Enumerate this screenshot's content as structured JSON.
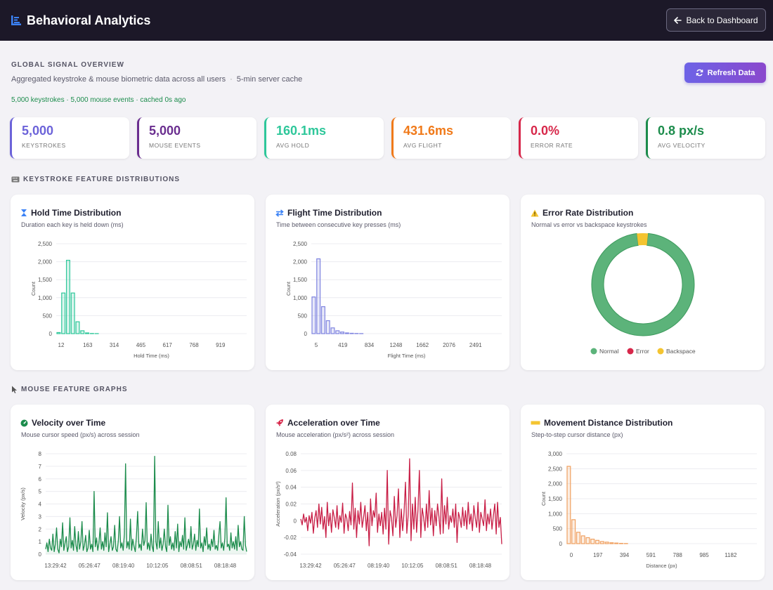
{
  "header": {
    "title": "Behavioral Analytics",
    "back_label": "Back to Dashboard"
  },
  "overview": {
    "label": "GLOBAL SIGNAL OVERVIEW",
    "description": "Aggregated keystroke & mouse biometric data across all users",
    "cache": "5-min server cache",
    "status": "5,000 keystrokes · 5,000 mouse events · cached 0s ago",
    "refresh_label": "Refresh Data"
  },
  "stats": [
    {
      "value": "5,000",
      "label": "Keystrokes",
      "color": "#6c63d9"
    },
    {
      "value": "5,000",
      "label": "Mouse events",
      "color": "#6a2e8f"
    },
    {
      "value": "160.1ms",
      "label": "Avg hold",
      "color": "#2ec79a"
    },
    {
      "value": "431.6ms",
      "label": "Avg flight",
      "color": "#f07a1a"
    },
    {
      "value": "0.0%",
      "label": "Error rate",
      "color": "#d7274a"
    },
    {
      "value": "0.8 px/s",
      "label": "Avg velocity",
      "color": "#1c8c4c"
    }
  ],
  "sections": {
    "keystroke": "KEYSTROKE FEATURE DISTRIBUTIONS",
    "mouse": "MOUSE FEATURE GRAPHS"
  },
  "cards": {
    "hold": {
      "title": "Hold Time Distribution",
      "subtitle": "Duration each key is held down (ms)"
    },
    "flight": {
      "title": "Flight Time Distribution",
      "subtitle": "Time between consecutive key presses (ms)"
    },
    "error": {
      "title": "Error Rate Distribution",
      "subtitle": "Normal vs error vs backspace keystrokes"
    },
    "velocity": {
      "title": "Velocity over Time",
      "subtitle": "Mouse cursor speed (px/s) across session"
    },
    "accel": {
      "title": "Acceleration over Time",
      "subtitle": "Mouse acceleration (px/s²) across session"
    },
    "distance": {
      "title": "Movement Distance Distribution",
      "subtitle": "Step-to-step cursor distance (px)"
    }
  },
  "chart_data": [
    {
      "id": "hold",
      "type": "bar",
      "color": "#2ec79a",
      "xlabel": "Hold Time (ms)",
      "ylabel": "Count",
      "ylim": [
        0,
        2500
      ],
      "yticks": [
        "0",
        "500",
        "1,000",
        "1,500",
        "2,000",
        "2,500"
      ],
      "xticks": [
        "12",
        "163",
        "314",
        "465",
        "617",
        "768",
        "919"
      ],
      "values": [
        30,
        1130,
        2040,
        1130,
        330,
        80,
        20,
        5,
        2,
        0,
        0,
        0,
        0,
        0,
        0,
        0,
        0,
        0,
        0,
        0,
        0,
        0,
        0,
        0,
        0,
        0,
        0,
        0,
        0,
        0,
        0,
        0,
        0,
        0,
        0,
        0,
        0,
        0,
        0,
        0
      ]
    },
    {
      "id": "flight",
      "type": "bar",
      "color": "#7f84e0",
      "xlabel": "Flight Time (ms)",
      "ylabel": "Count",
      "ylim": [
        0,
        2500
      ],
      "yticks": [
        "0",
        "500",
        "1,000",
        "1,500",
        "2,000",
        "2,500"
      ],
      "xticks": [
        "5",
        "419",
        "834",
        "1248",
        "1662",
        "2076",
        "2491"
      ],
      "values": [
        1020,
        2080,
        750,
        360,
        160,
        80,
        45,
        20,
        10,
        5,
        2,
        0,
        0,
        0,
        0,
        0,
        0,
        0,
        0,
        0,
        0,
        0,
        0,
        0,
        0,
        0,
        0,
        0,
        0,
        0,
        0,
        0,
        0,
        0,
        0,
        0,
        0,
        0,
        0,
        0
      ]
    },
    {
      "id": "error",
      "type": "pie",
      "legend": [
        "Normal",
        "Error",
        "Backspace"
      ],
      "colors": [
        "#5cb37a",
        "#d7274a",
        "#f4c430"
      ],
      "values": [
        96.5,
        0,
        3.5
      ]
    },
    {
      "id": "velocity",
      "type": "line",
      "color": "#1c8c4c",
      "xlabel": "",
      "ylabel": "Velocity (px/s)",
      "ylim": [
        0,
        8
      ],
      "yticks": [
        "0",
        "1",
        "2",
        "3",
        "4",
        "5",
        "6",
        "7",
        "8"
      ],
      "xticks": [
        "13:29:42",
        "05:26:47",
        "08:19:40",
        "10:12:05",
        "08:08:51",
        "08:18:48"
      ],
      "values": [
        0.4,
        0.9,
        0.2,
        1.2,
        0.5,
        0.3,
        1.6,
        0.2,
        0.8,
        2.1,
        0.4,
        0.1,
        1.2,
        0.6,
        2.5,
        0.3,
        0.9,
        1.4,
        0.2,
        0.6,
        2.9,
        0.5,
        1.1,
        0.3,
        2.2,
        0.7,
        0.2,
        1.8,
        0.4,
        1.0,
        2.6,
        0.3,
        0.7,
        1.5,
        0.2,
        0.5,
        1.9,
        0.4,
        0.8,
        0.2,
        5.0,
        0.6,
        1.3,
        0.3,
        0.9,
        2.1,
        0.4,
        1.0,
        0.3,
        1.7,
        0.6,
        3.3,
        0.2,
        0.8,
        1.4,
        0.3,
        0.6,
        2.3,
        0.4,
        0.2,
        1.1,
        3.0,
        0.5,
        0.9,
        0.3,
        1.6,
        7.2,
        0.5,
        1.0,
        0.4,
        2.8,
        0.3,
        1.2,
        0.6,
        0.2,
        1.5,
        3.4,
        0.5,
        0.8,
        0.3,
        2.0,
        0.7,
        1.1,
        4.1,
        0.4,
        0.9,
        0.3,
        1.6,
        0.6,
        0.2,
        7.8,
        1.0,
        0.4,
        2.6,
        0.5,
        1.3,
        0.3,
        0.8,
        2.0,
        0.6,
        0.2,
        3.9,
        0.7,
        1.4,
        0.4,
        0.9,
        0.3,
        1.8,
        0.5,
        2.4,
        0.2,
        1.0,
        0.6,
        1.5,
        0.4,
        2.9,
        0.3,
        0.7,
        1.2,
        0.5,
        2.2,
        0.4,
        0.8,
        1.6,
        0.3,
        1.1,
        0.6,
        3.6,
        0.5,
        0.9,
        0.2,
        1.4,
        0.7,
        2.1,
        0.4,
        0.8,
        0.3,
        1.2,
        0.6,
        1.9,
        0.4,
        0.7,
        0.3,
        1.5,
        2.6,
        0.5,
        0.9,
        0.3,
        1.3,
        4.5,
        0.6,
        0.8,
        0.3,
        1.7,
        0.5,
        1.0,
        0.4,
        1.4,
        0.3,
        2.3,
        0.6,
        1.0,
        0.4,
        0.3,
        3.0,
        0.7,
        0.2
      ]
    },
    {
      "id": "accel",
      "type": "line",
      "color": "#c81e46",
      "xlabel": "",
      "ylabel": "Acceleration (px/s²)",
      "ylim": [
        -0.04,
        0.08
      ],
      "yticks": [
        "-0.04",
        "-0.02",
        "0",
        "0.02",
        "0.04",
        "0.06",
        "0.08"
      ],
      "xticks": [
        "13:29:42",
        "05:26:47",
        "08:19:40",
        "10:12:05",
        "08:08:51",
        "08:18:48"
      ],
      "values": [
        0.002,
        -0.005,
        0.008,
        -0.002,
        0.004,
        -0.012,
        0.006,
        -0.003,
        0.01,
        -0.015,
        0.003,
        0.012,
        -0.008,
        0.02,
        -0.004,
        0.016,
        -0.01,
        0.005,
        -0.02,
        0.022,
        -0.006,
        0.009,
        -0.014,
        0.013,
        0.004,
        -0.008,
        0.018,
        -0.01,
        0.006,
        -0.002,
        0.021,
        -0.015,
        0.008,
        0.003,
        -0.012,
        0.011,
        -0.005,
        0.045,
        -0.01,
        0.015,
        -0.02,
        0.012,
        -0.004,
        0.022,
        -0.008,
        0.004,
        0.018,
        -0.012,
        0.01,
        -0.03,
        0.026,
        -0.006,
        0.012,
        0.004,
        0.033,
        -0.014,
        0.008,
        -0.006,
        0.01,
        -0.016,
        0.015,
        -0.01,
        0.06,
        -0.028,
        0.012,
        0.003,
        -0.018,
        0.029,
        -0.008,
        0.006,
        0.038,
        -0.02,
        0.014,
        -0.012,
        0.01,
        0.046,
        -0.015,
        0.007,
        0.074,
        -0.024,
        0.02,
        -0.01,
        0.028,
        -0.014,
        0.013,
        0.06,
        -0.02,
        0.015,
        0.004,
        -0.012,
        0.02,
        -0.008,
        0.036,
        -0.005,
        0.015,
        -0.018,
        0.012,
        -0.006,
        0.02,
        0.005,
        -0.016,
        0.05,
        -0.015,
        0.018,
        -0.004,
        0.028,
        -0.01,
        0.006,
        -0.002,
        0.014,
        -0.008,
        0.02,
        -0.026,
        0.01,
        0.003,
        -0.008,
        0.016,
        -0.006,
        0.012,
        -0.01,
        0.022,
        -0.004,
        0.008,
        -0.012,
        0.018,
        0.003,
        -0.008,
        0.022,
        -0.014,
        0.01,
        0.002,
        -0.006,
        0.025,
        -0.012,
        0.008,
        -0.004,
        0.014,
        -0.01,
        0.006,
        0.02,
        -0.016,
        0.022,
        -0.008,
        0.004,
        -0.028
      ]
    },
    {
      "id": "distance",
      "type": "bar",
      "color": "#f0a060",
      "xlabel": "Distance (px)",
      "ylabel": "Count",
      "ylim": [
        0,
        3000
      ],
      "yticks": [
        "0",
        "500",
        "1,000",
        "1,500",
        "2,000",
        "2,500",
        "3,000"
      ],
      "xticks": [
        "0",
        "197",
        "394",
        "591",
        "788",
        "985",
        "1182"
      ],
      "values": [
        2580,
        800,
        380,
        260,
        200,
        150,
        110,
        70,
        50,
        30,
        20,
        10,
        5,
        0,
        0,
        0,
        0,
        0,
        0,
        0,
        0,
        0,
        0,
        0,
        0,
        0,
        0,
        0,
        0,
        0,
        0,
        0,
        0,
        0,
        0,
        0,
        0,
        0,
        0,
        0
      ]
    }
  ]
}
